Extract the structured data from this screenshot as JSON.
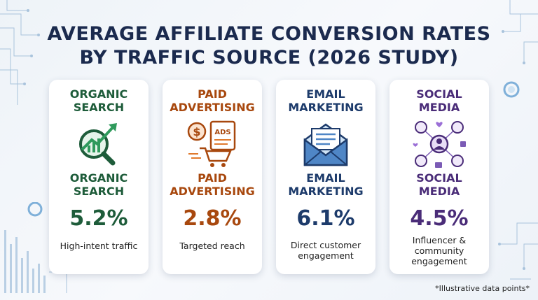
{
  "title_line1": "AVERAGE AFFILIATE CONVERSION RATES",
  "title_line2": "BY TRAFFIC SOURCE (2026 STUDY)",
  "colors": {
    "organic": "#1e5c3a",
    "paid": "#a8480e",
    "email": "#1d3b6b",
    "social": "#4a2c78"
  },
  "cards": [
    {
      "head_1": "ORGANIC",
      "head_2": "SEARCH",
      "icon": "magnifier-growth-chart-icon",
      "sub_1": "ORGANIC",
      "sub_2": "SEARCH",
      "value": "5.2%",
      "desc_1": "High-intent traffic",
      "desc_2": "",
      "desc_3": ""
    },
    {
      "head_1": "PAID",
      "head_2": "ADVERTISING",
      "icon": "ads-cart-dollar-icon",
      "sub_1": "PAID",
      "sub_2": "ADVERTISING",
      "value": "2.8%",
      "desc_1": "Targeted reach",
      "desc_2": "",
      "desc_3": ""
    },
    {
      "head_1": "EMAIL",
      "head_2": "MARKETING",
      "icon": "envelope-icon",
      "sub_1": "EMAIL",
      "sub_2": "MARKETING",
      "value": "6.1%",
      "desc_1": "Direct customer",
      "desc_2": "engagement",
      "desc_3": ""
    },
    {
      "head_1": "SOCIAL",
      "head_2": "MEDIA",
      "icon": "social-network-icon",
      "sub_1": "SOCIAL",
      "sub_2": "MEDIA",
      "value": "4.5%",
      "desc_1": "Influencer &",
      "desc_2": "community",
      "desc_3": "engagement"
    }
  ],
  "footnote": "*Illustrative data points*",
  "chart_data": {
    "type": "table",
    "title": "AVERAGE AFFILIATE CONVERSION RATES BY TRAFFIC SOURCE (2026 STUDY)",
    "categories": [
      "ORGANIC SEARCH",
      "PAID ADVERTISING",
      "EMAIL MARKETING",
      "SOCIAL MEDIA"
    ],
    "values": [
      5.2,
      2.8,
      6.1,
      4.5
    ],
    "unit": "%",
    "descriptions": [
      "High-intent traffic",
      "Targeted reach",
      "Direct customer engagement",
      "Influencer & community engagement"
    ]
  }
}
